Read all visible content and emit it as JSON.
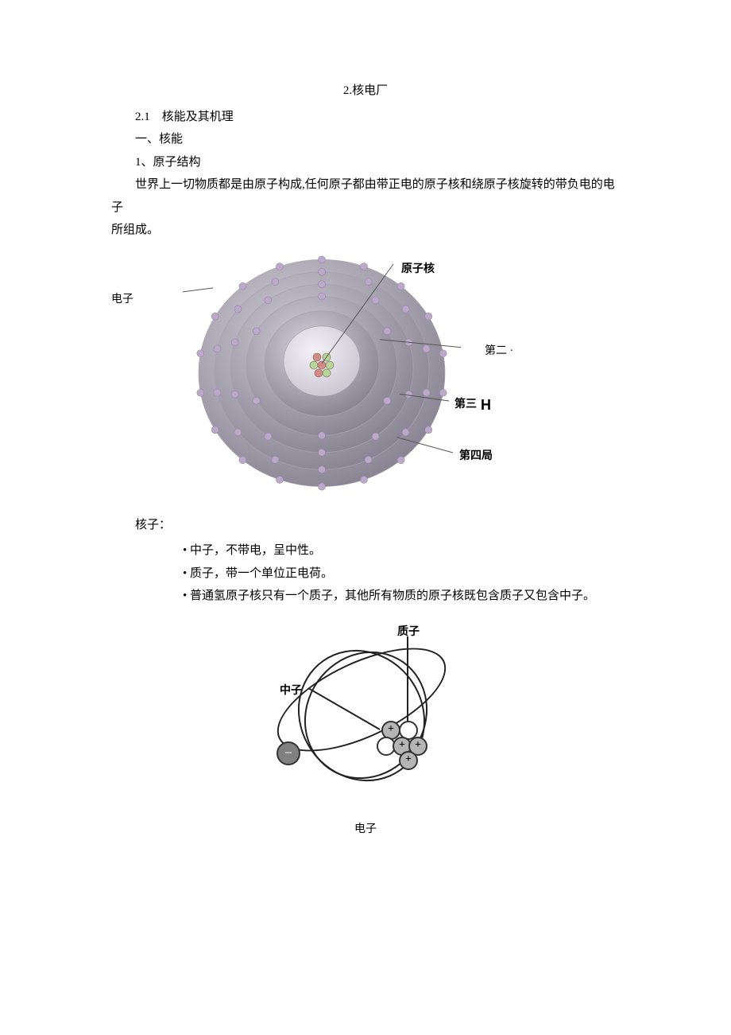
{
  "title": "2.核电厂",
  "sections": {
    "s21": "2.1　核能及其机理",
    "h1": "一、核能",
    "h11": "1、原子结构",
    "p1a": "世界上一切物质都是由原子构成,任何原子都由带正电的原子核和绕原子核旋转的带负电的电子",
    "p1b": "所组成。",
    "nucleons_intro": "核子：",
    "bullets": [
      "中子，不带电，呈中性。",
      "质子，带一个单位正电荷。",
      "普通氢原子核只有一个质子，其他所有物质的原子核既包含质子又包含中子。"
    ],
    "diag2_caption": "电子"
  },
  "diagram1": {
    "labels": {
      "electron": "电子",
      "nucleus": "原子核",
      "shell2": "第二 ·",
      "shell3_a": "第三",
      "shell3_b": "H",
      "shell4": "第四局"
    },
    "shells": {
      "bg_from": "#d8d5de",
      "bg_to": "#868291",
      "radii": [
        155,
        135,
        115,
        95,
        72,
        48
      ],
      "core_color_from": "#f4f1f7",
      "core_color_to": "#c9c6d1",
      "electron_color": "#bca9c9",
      "nucleon_green": "#b7d49a",
      "nucleon_red": "#d48a8a"
    }
  },
  "diagram2": {
    "labels": {
      "proton": "质子",
      "neutron": "中子"
    },
    "colors": {
      "proton": "#b5b5b5",
      "neutron": "#ffffff",
      "electron_fill": "#808080"
    }
  }
}
